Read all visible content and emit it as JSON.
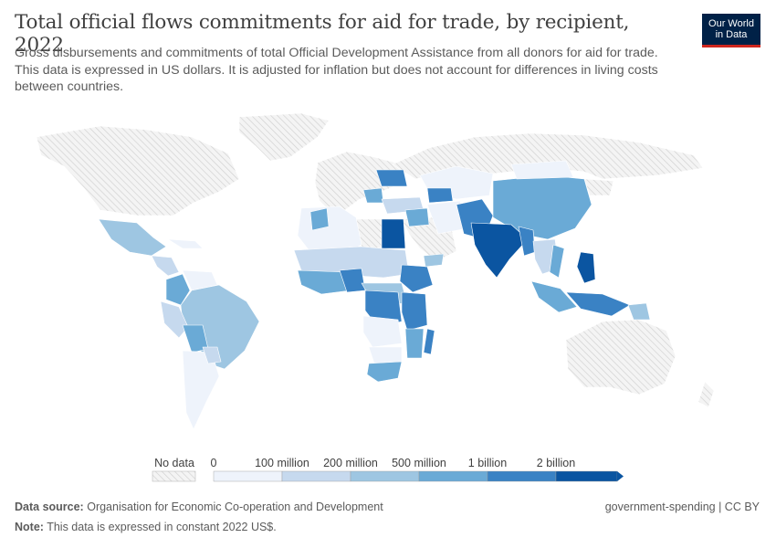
{
  "title": "Total official flows commitments for aid for trade, by recipient, 2022",
  "subtitle": "Gross disbursements and commitments of total Official Development Assistance from all donors for aid for trade. This data is expressed in US dollars. It is adjusted for inflation but does not account for differences in living costs between countries.",
  "logo": {
    "line1": "Our World",
    "line2": "in Data"
  },
  "legend": {
    "no_data_label": "No data",
    "ticks": [
      "0",
      "100 million",
      "200 million",
      "500 million",
      "1 billion",
      "2 billion"
    ],
    "colors": [
      "#eef3fb",
      "#c6d9ee",
      "#9ec6e2",
      "#6aaad6",
      "#3a82c4",
      "#0b55a1"
    ]
  },
  "footer": {
    "source_label": "Data source:",
    "source_text": "Organisation for Economic Co-operation and Development",
    "note_label": "Note:",
    "note_text": "This data is expressed in constant 2022 US$.",
    "license": "government-spending | CC BY"
  },
  "colors": {
    "no_data": "#f2f2f2",
    "hatch": "#d2d2d2",
    "border": "#ffffff",
    "c0": "#eef3fb",
    "c1": "#c6d9ee",
    "c2": "#9ec6e2",
    "c3": "#6aaad6",
    "c4": "#3a82c4",
    "c5": "#0b55a1"
  }
}
